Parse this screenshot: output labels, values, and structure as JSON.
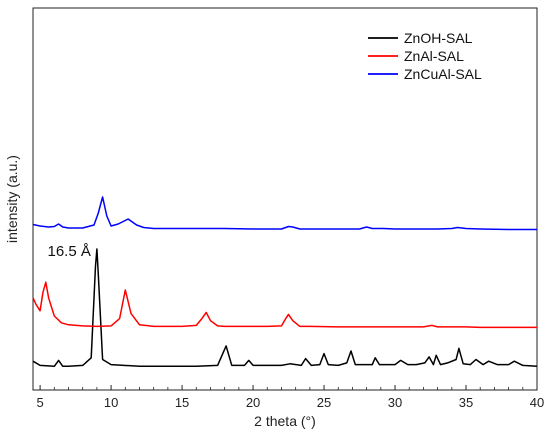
{
  "chart_data": {
    "type": "line",
    "xlabel": "2 theta (°)",
    "ylabel": "intensity (a.u.)",
    "xlim": [
      4.5,
      40
    ],
    "x_ticks": [
      5,
      10,
      15,
      20,
      25,
      30,
      35,
      40
    ],
    "y_ticks": "none",
    "legend_position": "top-right",
    "annotations": [
      {
        "text": "16.5 Å",
        "x": 9.0,
        "series": "ZnOH-SAL"
      }
    ],
    "series": [
      {
        "name": "ZnOH-SAL",
        "color": "#000000",
        "baseline": 0.0,
        "x": [
          4.5,
          5.0,
          6.0,
          6.3,
          6.6,
          7.0,
          8.0,
          8.6,
          8.9,
          9.0,
          9.1,
          9.4,
          10.0,
          12.0,
          14.0,
          16.0,
          17.5,
          18.1,
          18.5,
          19.4,
          19.7,
          20.0,
          21.0,
          22.0,
          22.6,
          23.4,
          23.7,
          24.1,
          24.7,
          25.0,
          25.3,
          26.0,
          26.6,
          26.9,
          27.2,
          28.0,
          28.4,
          28.6,
          28.9,
          30.0,
          30.4,
          30.9,
          31.5,
          32.1,
          32.4,
          32.7,
          32.9,
          33.2,
          33.7,
          34.3,
          34.5,
          34.8,
          35.3,
          35.7,
          36.2,
          36.6,
          37.2,
          38.0,
          38.4,
          39.0,
          40.0
        ],
        "y": [
          0.8,
          0.3,
          0.2,
          0.9,
          0.2,
          0.2,
          0.3,
          1.2,
          12.0,
          14.0,
          11.0,
          1.0,
          0.4,
          0.2,
          0.2,
          0.2,
          0.3,
          2.6,
          0.3,
          0.3,
          0.9,
          0.3,
          0.3,
          0.3,
          0.5,
          0.3,
          1.1,
          0.3,
          0.4,
          1.7,
          0.4,
          0.3,
          0.6,
          2.0,
          0.4,
          0.4,
          0.4,
          1.2,
          0.4,
          0.4,
          0.9,
          0.4,
          0.4,
          0.6,
          1.3,
          0.4,
          1.5,
          0.4,
          0.6,
          1.0,
          2.3,
          0.5,
          0.4,
          1.0,
          0.4,
          0.8,
          0.4,
          0.4,
          0.8,
          0.3,
          0.2
        ]
      },
      {
        "name": "ZnAl-SAL",
        "color": "#ff0000",
        "baseline": 0.0,
        "x": [
          4.5,
          4.7,
          5.0,
          5.2,
          5.4,
          5.6,
          6.0,
          6.5,
          7.0,
          8.0,
          9.0,
          10.0,
          10.6,
          11.0,
          11.4,
          12.0,
          13.0,
          14.0,
          15.0,
          16.0,
          16.4,
          16.7,
          17.0,
          17.5,
          18.0,
          19.0,
          20.0,
          21.0,
          22.0,
          22.3,
          22.5,
          22.8,
          23.3,
          24.0,
          26.0,
          28.0,
          30.0,
          32.0,
          32.6,
          33.0,
          34.0,
          35.0,
          36.0,
          38.0,
          40.0
        ],
        "y": [
          6.0,
          4.8,
          3.5,
          7.0,
          9.0,
          6.0,
          2.5,
          1.2,
          0.8,
          0.6,
          0.5,
          0.6,
          2.0,
          7.5,
          3.0,
          0.8,
          0.5,
          0.5,
          0.5,
          0.7,
          2.0,
          3.2,
          1.6,
          0.6,
          0.5,
          0.5,
          0.5,
          0.5,
          0.6,
          2.0,
          2.8,
          1.6,
          0.5,
          0.5,
          0.4,
          0.4,
          0.4,
          0.4,
          0.7,
          0.4,
          0.4,
          0.4,
          0.3,
          0.3,
          0.3
        ]
      },
      {
        "name": "ZnCuAl-SAL",
        "color": "#0000ff",
        "baseline": 0.0,
        "x": [
          4.5,
          5.0,
          5.6,
          6.0,
          6.3,
          6.6,
          7.0,
          8.0,
          8.8,
          9.1,
          9.4,
          9.7,
          10.0,
          10.5,
          11.2,
          11.8,
          12.3,
          13.0,
          14.0,
          16.0,
          18.0,
          20.0,
          22.0,
          22.5,
          22.8,
          23.3,
          25.0,
          27.5,
          28.0,
          28.4,
          29.2,
          30.0,
          32.0,
          33.0,
          34.0,
          34.4,
          35.0,
          36.0,
          38.0,
          40.0
        ],
        "y": [
          1.3,
          1.0,
          0.8,
          0.9,
          1.4,
          0.8,
          0.6,
          0.6,
          1.2,
          3.6,
          6.8,
          3.0,
          1.0,
          1.4,
          2.4,
          1.2,
          0.7,
          0.5,
          0.5,
          0.5,
          0.5,
          0.4,
          0.4,
          0.9,
          0.8,
          0.4,
          0.4,
          0.4,
          0.8,
          0.5,
          0.5,
          0.4,
          0.4,
          0.4,
          0.5,
          0.7,
          0.5,
          0.4,
          0.3,
          0.3
        ]
      }
    ]
  }
}
